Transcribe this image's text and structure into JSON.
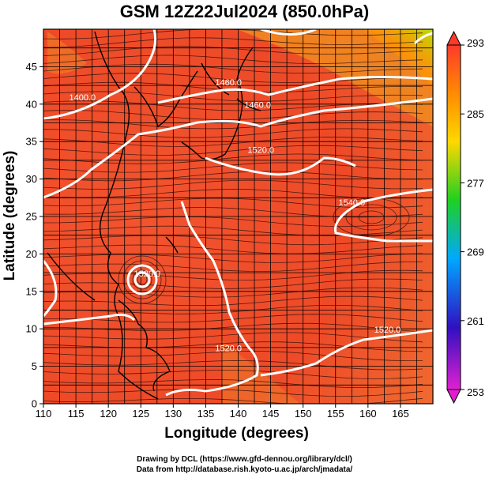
{
  "title": "GSM 12Z22Jul2024 (850.0hPa)",
  "credits": {
    "line1": "Drawing by DCL (https://www.gfd-dennou.org/library/dcl/)",
    "line2": "Data from http://database.rish.kyoto-u.ac.jp/arch/jmadata/"
  },
  "chart_data": {
    "type": "heatmap",
    "title": "GSM 12Z22Jul2024 (850.0hPa)",
    "xlabel": "Longitude (degrees)",
    "ylabel": "Latitude  (degrees)",
    "xlim": [
      110,
      170
    ],
    "ylim": [
      0,
      50
    ],
    "x_ticks": [
      110,
      115,
      120,
      125,
      130,
      135,
      140,
      145,
      150,
      155,
      160,
      165
    ],
    "y_ticks": [
      0,
      5,
      10,
      15,
      20,
      25,
      30,
      35,
      40,
      45
    ],
    "grid": true,
    "colorbar": {
      "position": "right",
      "ticks": [
        253,
        261,
        269,
        277,
        285,
        293
      ],
      "colors": [
        "#e020d0",
        "#3010c0",
        "#00a8ff",
        "#20d020",
        "#ffd800",
        "#ff9000",
        "#ff3a2a"
      ]
    },
    "contour_labels": [
      {
        "text": "1400.0",
        "lon": 116,
        "lat": 40.5
      },
      {
        "text": "1460.0",
        "lon": 138.5,
        "lat": 42.5
      },
      {
        "text": "1460.0",
        "lon": 143,
        "lat": 39.5
      },
      {
        "text": "1520.0",
        "lon": 143.5,
        "lat": 33.5
      },
      {
        "text": "1540.0",
        "lon": 157.5,
        "lat": 26.5
      },
      {
        "text": "1520.0",
        "lon": 126,
        "lat": 17
      },
      {
        "text": "1520.0",
        "lon": 163,
        "lat": 9.5
      },
      {
        "text": "1520.0",
        "lon": 138.5,
        "lat": 7
      }
    ]
  }
}
